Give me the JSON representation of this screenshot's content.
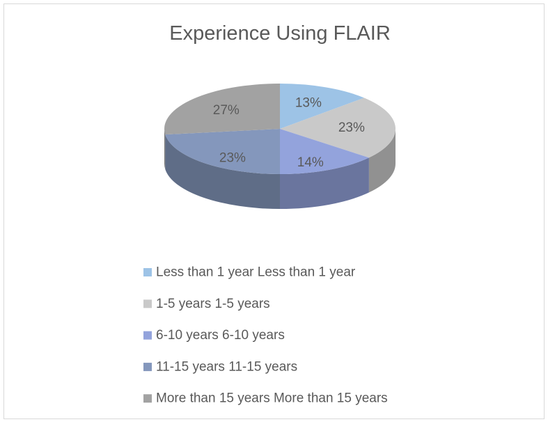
{
  "chart_data": {
    "type": "pie",
    "title": "Experience Using FLAIR",
    "categories": [
      "Less than 1 year Less than 1 year",
      "1-5 years 1-5 years",
      "6-10 years 6-10 years",
      "11-15 years 11-15 years",
      "More than 15 years More than 15 years"
    ],
    "values": [
      13,
      23,
      14,
      23,
      27
    ],
    "value_labels": [
      "13%",
      "23%",
      "14%",
      "23%",
      "27%"
    ],
    "colors": [
      "#9dc3e6",
      "#c9c9c9",
      "#93a3dc",
      "#8497bc",
      "#a2a2a2"
    ],
    "legend": "bottom"
  }
}
